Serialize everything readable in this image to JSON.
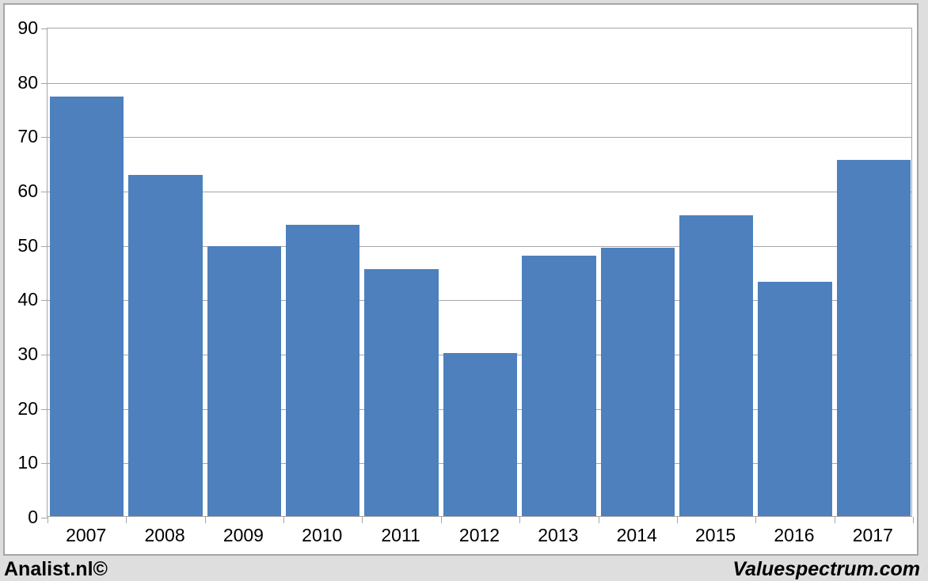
{
  "chart_data": {
    "type": "bar",
    "categories": [
      "2007",
      "2008",
      "2009",
      "2010",
      "2011",
      "2012",
      "2013",
      "2014",
      "2015",
      "2016",
      "2017"
    ],
    "values": [
      77.5,
      63.0,
      49.8,
      53.7,
      45.6,
      30.1,
      48.1,
      49.6,
      55.5,
      43.3,
      65.8
    ],
    "title": "",
    "xlabel": "",
    "ylabel": "",
    "ylim": [
      0,
      90
    ],
    "ytick_step": 10,
    "ytick_labels": [
      "0",
      "10",
      "20",
      "30",
      "40",
      "50",
      "60",
      "70",
      "80",
      "90"
    ],
    "grid": true,
    "legend_position": "none",
    "bar_color": "#4d80bd",
    "gridline_color": "#a6a6a6",
    "plot_background": "#ffffff"
  },
  "footer": {
    "left_text": "Analist.nl©",
    "right_text": "Valuespectrum.com"
  },
  "colors": {
    "page_background": "#dedede",
    "panel_border": "#a5a5a5",
    "text": "#000000"
  }
}
